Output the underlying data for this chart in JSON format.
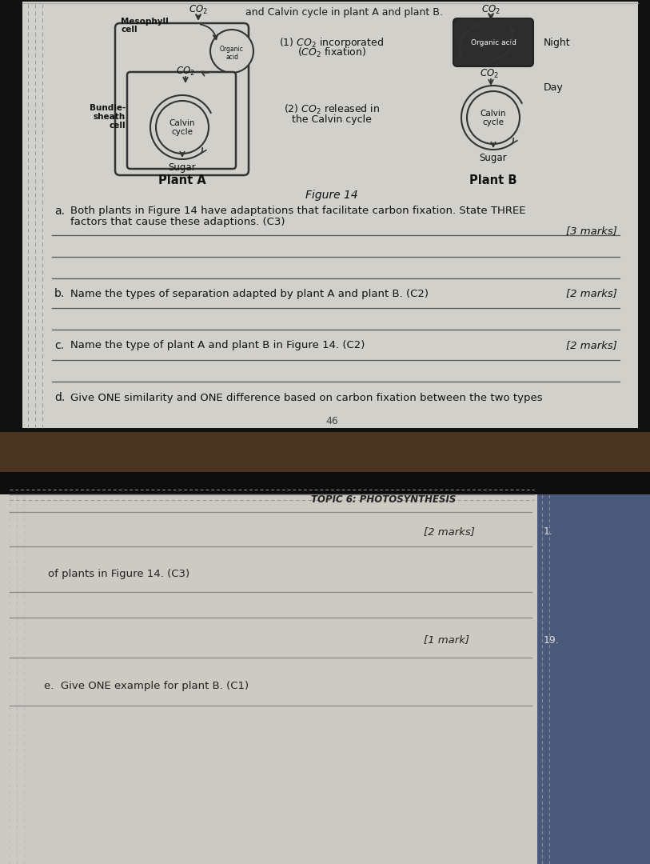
{
  "paper_bg": "#d2d0ca",
  "paper_bg2": "#cccbc4",
  "black_gap": "#111111",
  "right_col_bg": "#4a587a",
  "title_line": "and Calvin cycle in plant A and plant B.",
  "figure_label": "Figure 14",
  "plant_a_label": "Plant A",
  "plant_b_label": "Plant B",
  "mesophyll_line1": "Mesophyll",
  "mesophyll_line2": "cell",
  "bundle_line1": "Bundle-",
  "bundle_line2": "sheath",
  "bundle_line3": "cell",
  "organic_acid": "Organic acid",
  "co2": "CO₂",
  "calvin": "Calvin",
  "cycle": "cycle",
  "sugar": "Sugar",
  "night": "Night",
  "day": "Day",
  "label1a": "(1) CO₂ incorporated",
  "label1b": "(CO₂ fixation)",
  "label2a": "(2) CO₂ released in",
  "label2b": "the Calvin cycle",
  "qa_letter": "a.",
  "qa_text1": "Both plants in Figure 14 have adaptations that facilitate carbon fixation. State THREE",
  "qa_text2": "factors that cause these adaptions. (C3)",
  "qa_marks": "[3 marks]",
  "qb_letter": "b.",
  "qb_text": "Name the types of separation adapted by plant A and plant B. (C2)",
  "qb_marks": "[2 marks]",
  "qc_letter": "c.",
  "qc_text": "Name the type of plant A and plant B in Figure 14. (C2)",
  "qc_marks": "[2 marks]",
  "qd_letter": "d.",
  "qd_text": "Give ONE similarity and ONE difference based on carbon fixation between the two types",
  "topic_header": "TOPIC 6: PHOTOSYNTHESIS",
  "qd_marks": "[2 marks]",
  "qd_cont": "of plants in Figure 14. (C3)",
  "qe_marks": "[1 mark]",
  "qe_text": "e.  Give ONE example for plant B. (C1)",
  "q1": "1.",
  "q19": "19."
}
